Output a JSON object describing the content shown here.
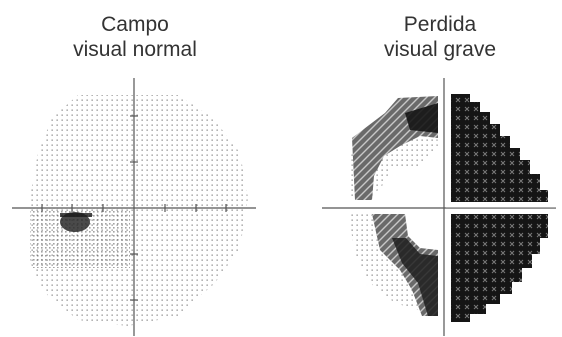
{
  "panels": [
    {
      "title_line1": "Campo",
      "title_line2": "visual normal",
      "condition": "normal"
    },
    {
      "title_line1": "Perdida",
      "title_line2": "visual grave",
      "condition": "severe-loss"
    }
  ],
  "colors": {
    "title": "#333333",
    "axis": "#555555",
    "dot_light": "#8a8a8a",
    "dot_dense": "#444444",
    "dark_loss": "#151515",
    "hatch_loss": "#6a6a6a"
  }
}
